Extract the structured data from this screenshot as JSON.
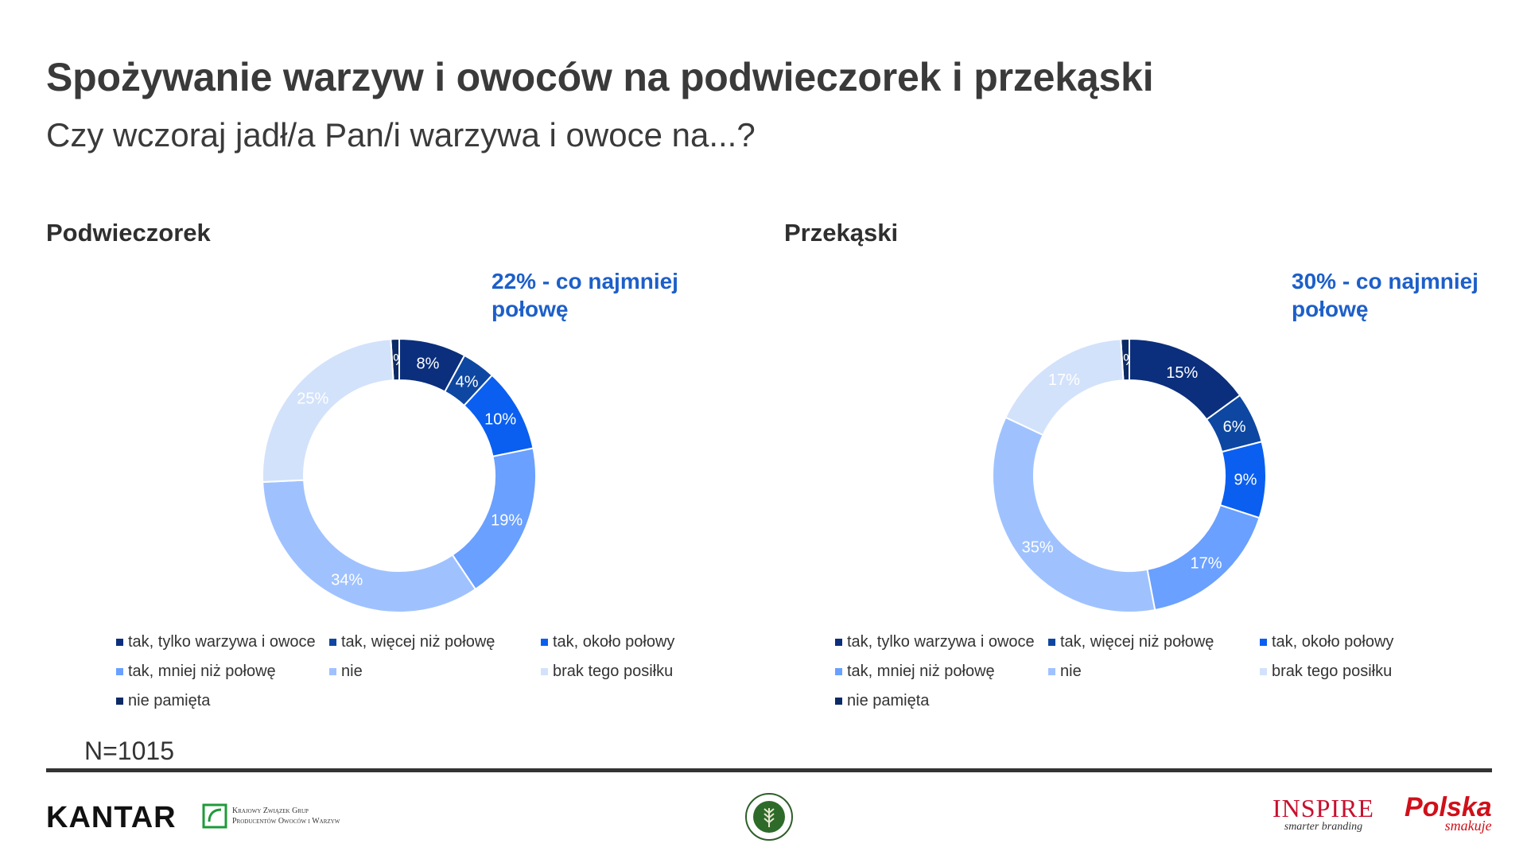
{
  "header": {
    "title": "Spożywanie warzyw i owoców na podwieczorek i przekąski",
    "subtitle": "Czy wczoraj jadł/a Pan/i warzywa i owoce na...?"
  },
  "footer": {
    "n_label": "N=1015",
    "logos": {
      "kantar": "KANTAR",
      "kzgp_line1": "Krajowy Związek Grup",
      "kzgp_line2": "Producentów Owoców i Warzyw",
      "inspire": "INSPIRE",
      "inspire_tagline": "smarter branding",
      "polska": "Polska",
      "polska_tagline": "smakuje"
    }
  },
  "chart_data": [
    {
      "type": "pie",
      "variant": "donut",
      "title": "Podwieczorek",
      "annotation": "22% - co najmniej połowę",
      "categories": [
        "tak, tylko warzywa i owoce",
        "tak, więcej niż połowę",
        "tak, około połowy",
        "tak, mniej niż połowę",
        "nie",
        "brak tego posiłku",
        "nie pamięta"
      ],
      "values": [
        8,
        4,
        10,
        19,
        34,
        25,
        1
      ],
      "labels": [
        "8%",
        "4%",
        "10%",
        "19%",
        "34%",
        "25%",
        "1%"
      ],
      "legend": "bottom"
    },
    {
      "type": "pie",
      "variant": "donut",
      "title": "Przekąski",
      "annotation": "30% - co najmniej połowę",
      "categories": [
        "tak, tylko warzywa i owoce",
        "tak, więcej niż połowę",
        "tak, około połowy",
        "tak, mniej niż połowę",
        "nie",
        "brak tego posiłku",
        "nie pamięta"
      ],
      "values": [
        15,
        6,
        9,
        17,
        35,
        17,
        1
      ],
      "labels": [
        "15%",
        "6%",
        "9%",
        "17%",
        "35%",
        "17%",
        "1%"
      ],
      "legend": "bottom"
    }
  ],
  "colors": {
    "series": [
      "#0b2f7c",
      "#0d47a1",
      "#0a5ff0",
      "#6aa0ff",
      "#9fc2ff",
      "#d3e2fb",
      "#0b2a66"
    ],
    "label_text": [
      "#ffffff",
      "#ffffff",
      "#ffffff",
      "#ffffff",
      "#ffffff",
      "#ffffff",
      "#ffffff"
    ],
    "highlight": "#1d5fc9"
  }
}
